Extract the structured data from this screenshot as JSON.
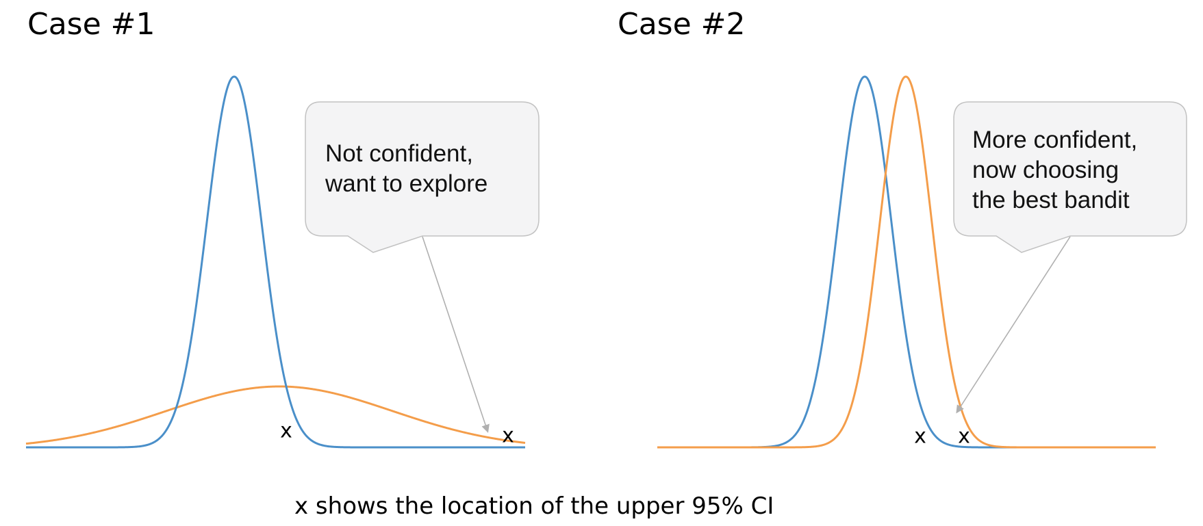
{
  "panels": [
    {
      "title": "Case #1",
      "callout": [
        "Not confident,",
        "want to explore"
      ]
    },
    {
      "title": "Case #2",
      "callout": [
        "More confident,",
        "now choosing",
        "the best bandit"
      ]
    }
  ],
  "marker_symbol": "x",
  "caption": "x shows the location of the upper 95% CI",
  "colors": {
    "blue_curve": "#4a8fc9",
    "orange_curve": "#f49d4a",
    "callout_fill": "#f4f4f5",
    "callout_border": "#c2c2c2",
    "pointer": "#b0b0b0"
  }
}
